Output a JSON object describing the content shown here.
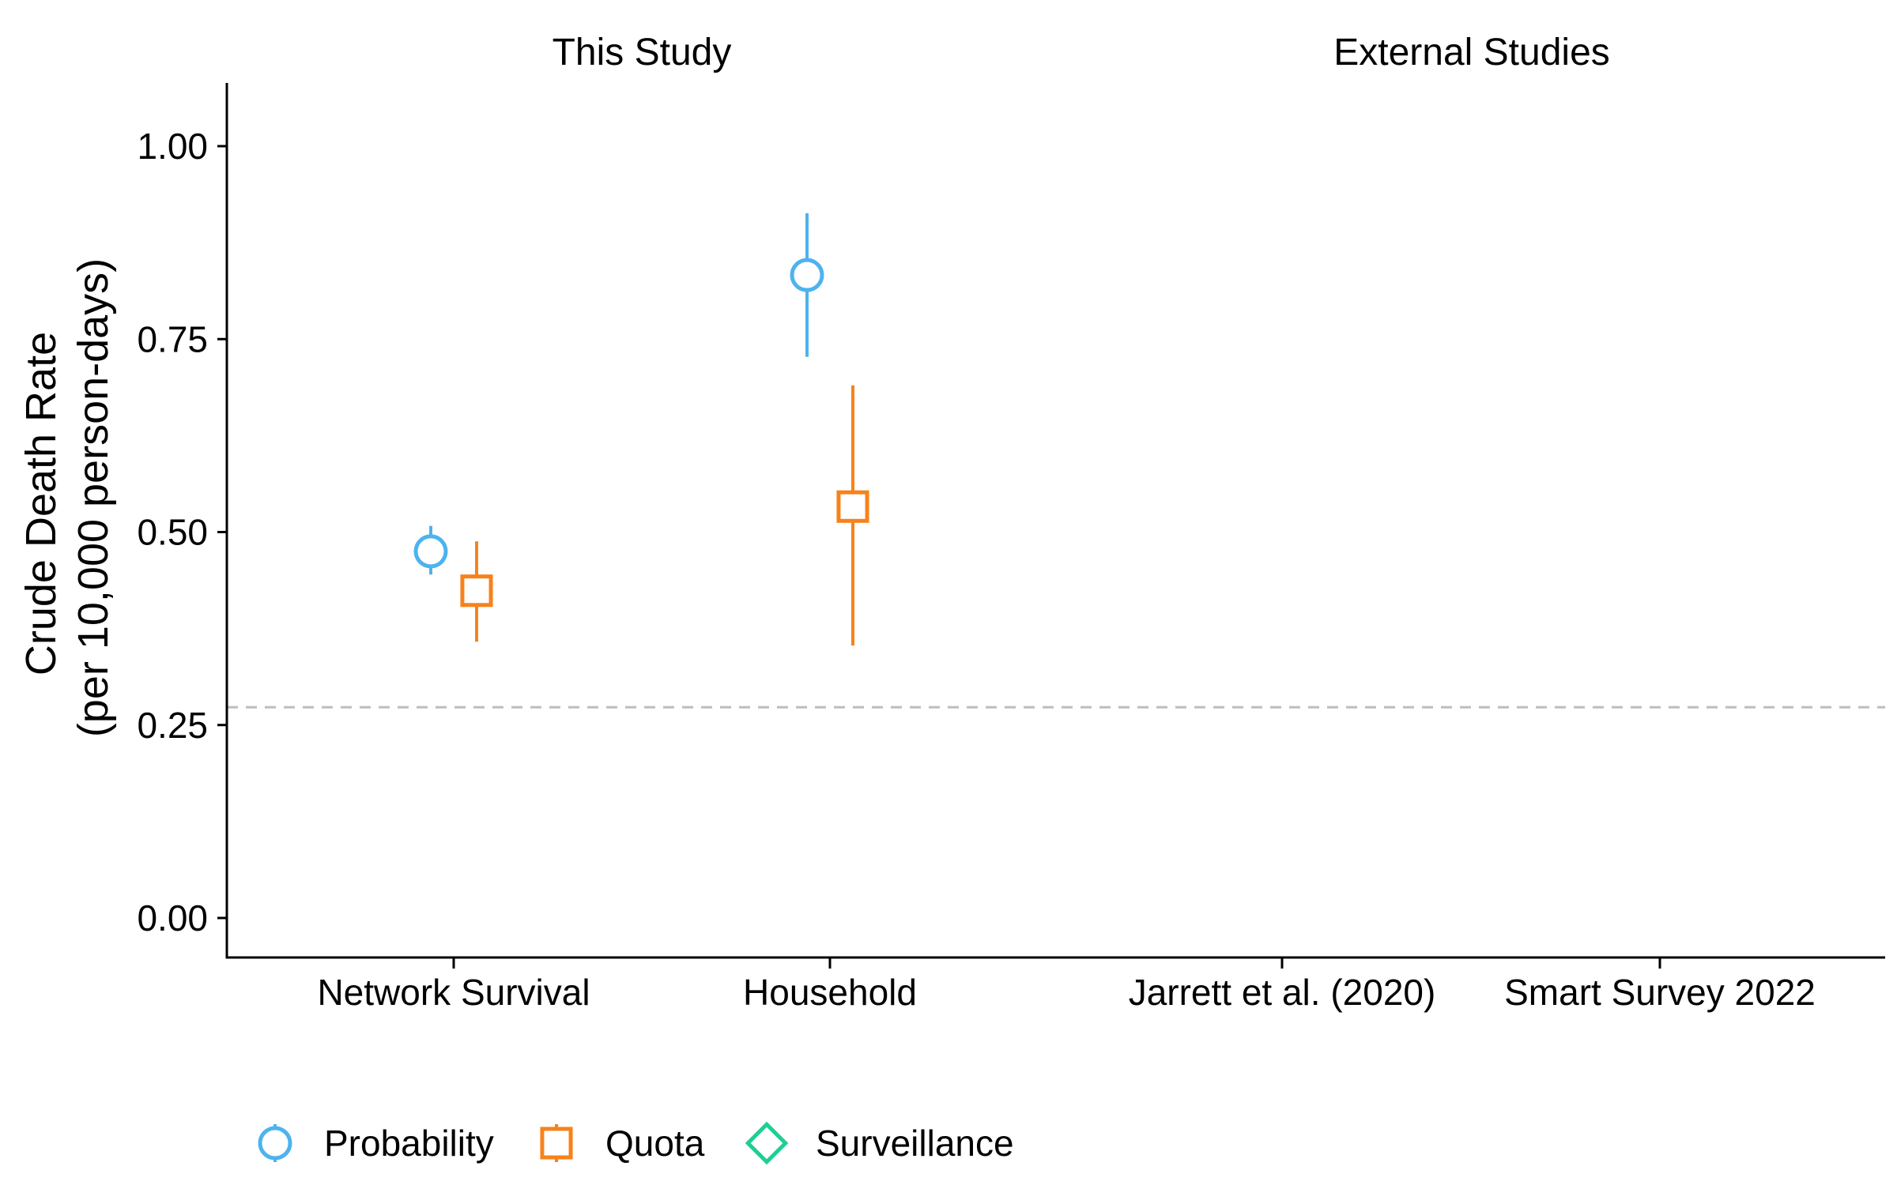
{
  "chart_data": {
    "type": "scatter",
    "subtype": "point-range",
    "facets": [
      {
        "label": "This Study",
        "categories": [
          "Network Survival",
          "Household"
        ]
      },
      {
        "label": "External Studies",
        "categories": [
          "Jarrett et al. (2020)",
          "Smart Survey 2022"
        ]
      }
    ],
    "ylabel_line1": "Crude Death Rate",
    "ylabel_line2": "(per 10,000 person-days)",
    "ylim": [
      -0.05,
      1.08
    ],
    "yticks": [
      0.0,
      0.25,
      0.5,
      0.75,
      1.0
    ],
    "ytick_labels": [
      "0.00",
      "0.25",
      "0.50",
      "0.75",
      "1.00"
    ],
    "reference_line": {
      "y": 0.273,
      "style": "dashed",
      "color": "#bdbdbd"
    },
    "series": [
      {
        "name": "Probability",
        "shape": "circle",
        "color": "#4db3ee",
        "points": [
          {
            "category": "Network Survival",
            "y": 0.475,
            "lo": 0.445,
            "hi": 0.508
          },
          {
            "category": "Household",
            "y": 0.833,
            "lo": 0.727,
            "hi": 0.913
          }
        ]
      },
      {
        "name": "Quota",
        "shape": "square",
        "color": "#f7821b",
        "points": [
          {
            "category": "Network Survival",
            "y": 0.424,
            "lo": 0.358,
            "hi": 0.488
          },
          {
            "category": "Household",
            "y": 0.533,
            "lo": 0.353,
            "hi": 0.69
          }
        ]
      },
      {
        "name": "Surveillance",
        "shape": "diamond",
        "color": "#1fcf92",
        "points": []
      }
    ],
    "legend_position": "bottom-left",
    "grid": false
  }
}
